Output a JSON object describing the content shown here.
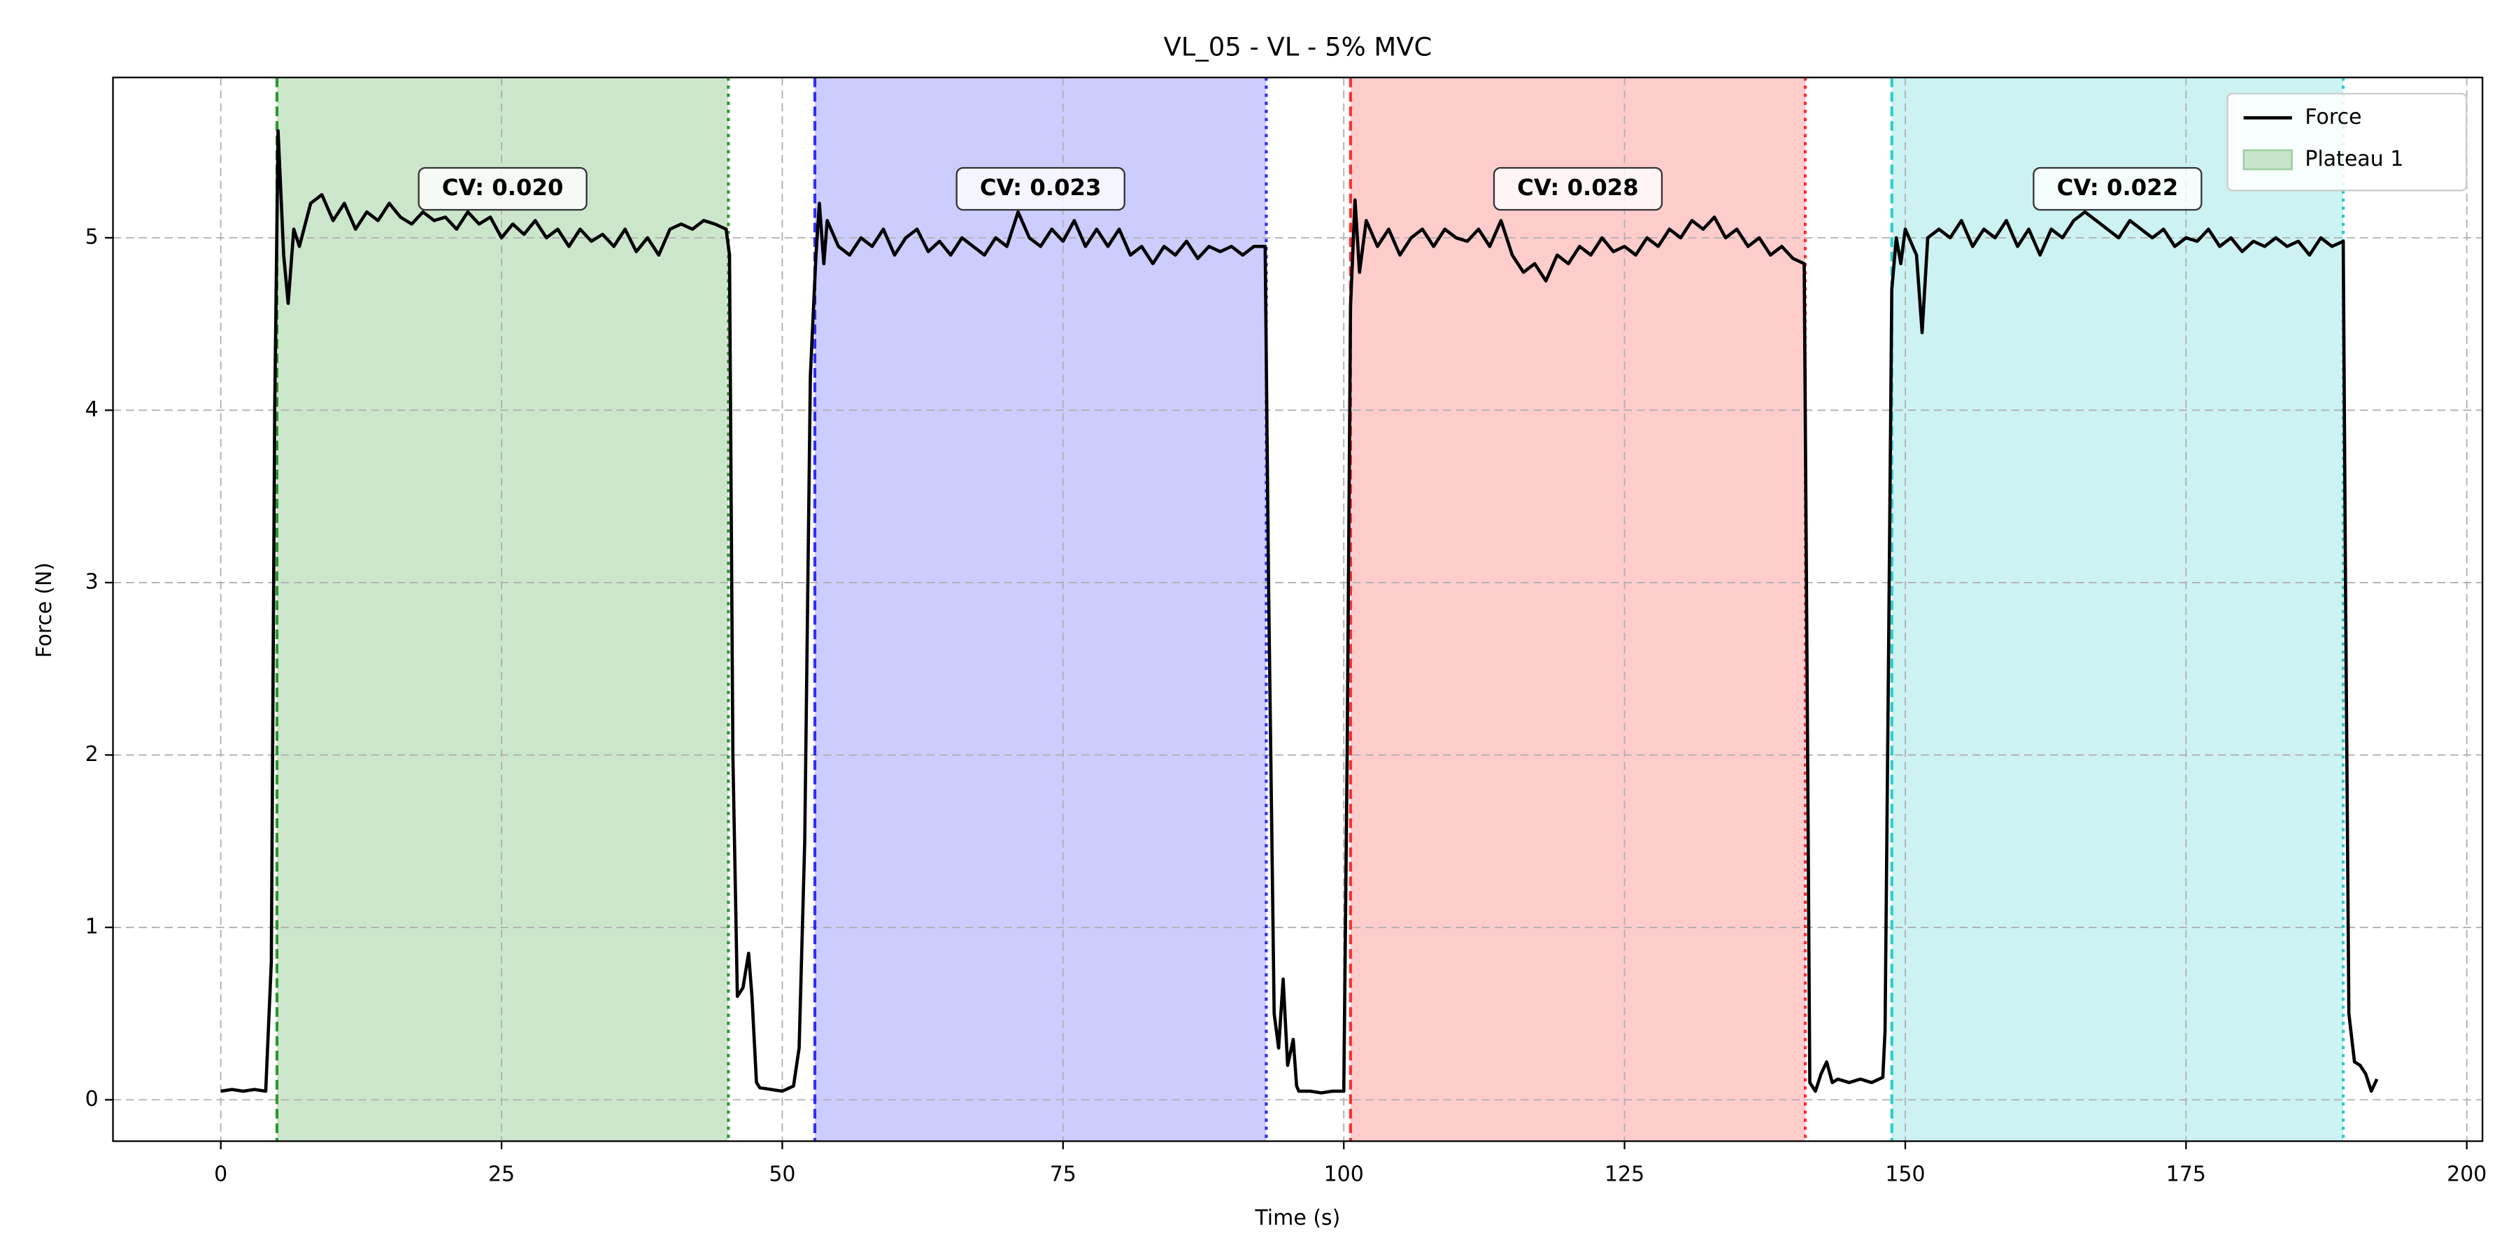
{
  "chart_data": {
    "type": "line",
    "title": "VL_05 - VL - 5% MVC",
    "x_label": "Time (s)",
    "y_label": "Force (N)",
    "xlim": [
      -9.6,
      201.4
    ],
    "ylim": [
      -0.24,
      5.93
    ],
    "xticks": [
      0,
      25,
      50,
      75,
      100,
      125,
      150,
      175,
      200
    ],
    "yticks": [
      0,
      1,
      2,
      3,
      4,
      5
    ],
    "grid": true,
    "legend": "upper right",
    "x": [
      0,
      1,
      2,
      3,
      4,
      4.5,
      4.8,
      5.1,
      5.6,
      6,
      6.5,
      7,
      8,
      9,
      10,
      11,
      12,
      13,
      14,
      15,
      16,
      17,
      18,
      19,
      20,
      21,
      22,
      23,
      24,
      25,
      26,
      27,
      28,
      29,
      30,
      31,
      32,
      33,
      34,
      35,
      36,
      37,
      38,
      39,
      40,
      41,
      42,
      43,
      44,
      45,
      45.3,
      45.6,
      46,
      46.5,
      47,
      47.3,
      47.7,
      48,
      49,
      50,
      51,
      51.5,
      52,
      52.5,
      53,
      53.3,
      53.7,
      54,
      55,
      56,
      57,
      58,
      59,
      60,
      61,
      62,
      63,
      64,
      65,
      66,
      67,
      68,
      69,
      70,
      71,
      72,
      73,
      74,
      75,
      76,
      77,
      78,
      79,
      80,
      81,
      82,
      83,
      84,
      85,
      86,
      87,
      88,
      89,
      90,
      91,
      92,
      93,
      93.3,
      93.8,
      94.2,
      94.6,
      95,
      95.5,
      95.8,
      96,
      97,
      98,
      99,
      100,
      100.3,
      100.6,
      101,
      101.4,
      102,
      103,
      104,
      105,
      106,
      107,
      108,
      109,
      110,
      111,
      112,
      113,
      114,
      115,
      116,
      117,
      118,
      119,
      120,
      121,
      122,
      123,
      124,
      125,
      126,
      127,
      128,
      129,
      130,
      131,
      132,
      133,
      134,
      135,
      136,
      137,
      138,
      139,
      140,
      141,
      141.2,
      141.5,
      142,
      142.5,
      143,
      143.5,
      144,
      145,
      146,
      147,
      148,
      148.2,
      148.5,
      148.8,
      149.2,
      149.6,
      150,
      151,
      151.5,
      152,
      153,
      154,
      155,
      156,
      157,
      158,
      159,
      160,
      161,
      162,
      163,
      164,
      165,
      166,
      167,
      168,
      169,
      170,
      171,
      172,
      173,
      174,
      175,
      176,
      177,
      178,
      179,
      180,
      181,
      182,
      183,
      184,
      185,
      186,
      187,
      188,
      189,
      189.2,
      189.5,
      190,
      190.5,
      191,
      191.5,
      192
    ],
    "series": [
      {
        "name": "Force",
        "color": "#000000",
        "values": [
          0.05,
          0.06,
          0.05,
          0.06,
          0.05,
          0.8,
          4.0,
          5.62,
          4.9,
          4.62,
          5.05,
          4.95,
          5.2,
          5.25,
          5.1,
          5.2,
          5.05,
          5.15,
          5.1,
          5.2,
          5.12,
          5.08,
          5.15,
          5.1,
          5.12,
          5.05,
          5.15,
          5.08,
          5.12,
          5.0,
          5.08,
          5.02,
          5.1,
          5.0,
          5.05,
          4.95,
          5.05,
          4.98,
          5.02,
          4.95,
          5.05,
          4.92,
          5.0,
          4.9,
          5.05,
          5.08,
          5.05,
          5.1,
          5.08,
          5.05,
          4.9,
          2.0,
          0.6,
          0.65,
          0.85,
          0.6,
          0.1,
          0.07,
          0.06,
          0.05,
          0.08,
          0.3,
          1.5,
          4.2,
          4.9,
          5.2,
          4.85,
          5.1,
          4.95,
          4.9,
          5.0,
          4.95,
          5.05,
          4.9,
          5.0,
          5.05,
          4.92,
          4.98,
          4.9,
          5.0,
          4.95,
          4.9,
          5.0,
          4.95,
          5.15,
          5.0,
          4.95,
          5.05,
          4.98,
          5.1,
          4.95,
          5.05,
          4.95,
          5.05,
          4.9,
          4.95,
          4.85,
          4.95,
          4.9,
          4.98,
          4.88,
          4.95,
          4.92,
          4.95,
          4.9,
          4.95,
          4.95,
          3.0,
          0.5,
          0.3,
          0.7,
          0.2,
          0.35,
          0.08,
          0.05,
          0.05,
          0.04,
          0.05,
          0.05,
          2.0,
          4.6,
          5.22,
          4.8,
          5.1,
          4.95,
          5.05,
          4.9,
          5.0,
          5.05,
          4.95,
          5.05,
          5.0,
          4.98,
          5.05,
          4.95,
          5.1,
          4.9,
          4.8,
          4.85,
          4.75,
          4.9,
          4.85,
          4.95,
          4.9,
          5.0,
          4.92,
          4.95,
          4.9,
          5.0,
          4.95,
          5.05,
          5.0,
          5.1,
          5.05,
          5.12,
          5.0,
          5.05,
          4.95,
          5.0,
          4.9,
          4.95,
          4.88,
          4.85,
          3.0,
          0.1,
          0.05,
          0.15,
          0.22,
          0.1,
          0.12,
          0.1,
          0.12,
          0.1,
          0.13,
          0.4,
          2.5,
          4.7,
          5.0,
          4.85,
          5.05,
          4.9,
          4.45,
          5.0,
          5.05,
          5.0,
          5.1,
          4.95,
          5.05,
          5.0,
          5.1,
          4.95,
          5.05,
          4.9,
          5.05,
          5.0,
          5.1,
          5.15,
          5.1,
          5.05,
          5.0,
          5.1,
          5.05,
          5.0,
          5.05,
          4.95,
          5.0,
          4.98,
          5.05,
          4.95,
          5.0,
          4.92,
          4.98,
          4.95,
          5.0,
          4.95,
          4.98,
          4.9,
          5.0,
          4.95,
          4.98,
          3.0,
          0.5,
          0.22,
          0.2,
          0.15,
          0.05,
          0.12
        ]
      }
    ],
    "plateaus": [
      {
        "name": "Plateau 1",
        "start": 5,
        "end": 45.2,
        "color": "#008000",
        "cv_label": "CV: 0.020"
      },
      {
        "start": 52.9,
        "end": 93.1,
        "color": "#0000ff",
        "cv_label": "CV: 0.023"
      },
      {
        "start": 100.6,
        "end": 141.1,
        "color": "#ff0000",
        "cv_label": "CV: 0.028"
      },
      {
        "start": 148.8,
        "end": 189,
        "color": "#00bfbf",
        "cv_label": "CV: 0.022"
      }
    ]
  }
}
